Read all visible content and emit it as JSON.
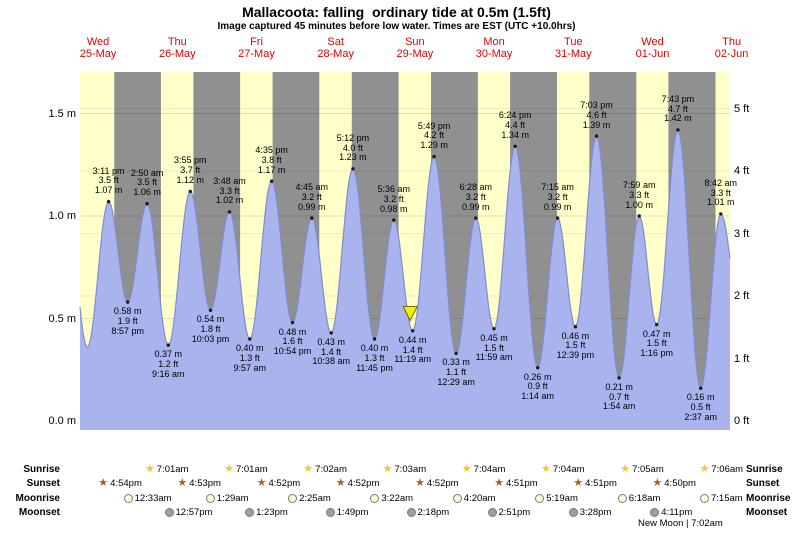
{
  "title": "Mallacoota: falling  ordinary tide at 0.5m (1.5ft)",
  "subtitle": "Image captured 45 minutes before low water. Times are EST (UTC +10.0hrs)",
  "days": [
    {
      "name": "Wed",
      "date": "25-May"
    },
    {
      "name": "Thu",
      "date": "26-May"
    },
    {
      "name": "Fri",
      "date": "27-May"
    },
    {
      "name": "Sat",
      "date": "28-May"
    },
    {
      "name": "Sun",
      "date": "29-May"
    },
    {
      "name": "Mon",
      "date": "30-May"
    },
    {
      "name": "Tue",
      "date": "31-May"
    },
    {
      "name": "Wed",
      "date": "01-Jun"
    },
    {
      "name": "Thu",
      "date": "02-Jun"
    }
  ],
  "y_axis": {
    "left_labels": [
      "1.5 m",
      "1.0 m",
      "0.5 m",
      "0.0 m"
    ],
    "right_labels": [
      "5 ft",
      "4 ft",
      "3 ft",
      "2 ft",
      "1 ft",
      "0 ft"
    ]
  },
  "chart_data": {
    "type": "area",
    "ylabel_left_unit": "m",
    "ylabel_right_unit": "ft",
    "ylim_m": [
      0,
      1.7
    ],
    "x_range_hours": [
      6.5,
      203.5
    ],
    "tide_events": [
      {
        "type": "high",
        "time": "3:11 pm",
        "ft": "3.5 ft",
        "m": "1.07 m",
        "height_m": 1.07,
        "t": 15.18
      },
      {
        "type": "low",
        "time": "8:57 pm",
        "ft": "1.9 ft",
        "m": "0.58 m",
        "height_m": 0.58,
        "t": 20.95
      },
      {
        "type": "high",
        "time": "2:50 am",
        "ft": "3.5 ft",
        "m": "1.06 m",
        "height_m": 1.06,
        "t": 26.83
      },
      {
        "type": "low",
        "time": "9:16 am",
        "ft": "1.2 ft",
        "m": "0.37 m",
        "height_m": 0.37,
        "t": 33.27
      },
      {
        "type": "high",
        "time": "3:55 pm",
        "ft": "3.7 ft",
        "m": "1.12 m",
        "height_m": 1.12,
        "t": 39.92
      },
      {
        "type": "low",
        "time": "10:03 pm",
        "ft": "1.8 ft",
        "m": "0.54 m",
        "height_m": 0.54,
        "t": 46.05
      },
      {
        "type": "high",
        "time": "3:48 am",
        "ft": "3.3 ft",
        "m": "1.02 m",
        "height_m": 1.02,
        "t": 51.8
      },
      {
        "type": "low",
        "time": "9:57 am",
        "ft": "1.3 ft",
        "m": "0.40 m",
        "height_m": 0.4,
        "t": 57.95
      },
      {
        "type": "high",
        "time": "4:35 pm",
        "ft": "3.8 ft",
        "m": "1.17 m",
        "height_m": 1.17,
        "t": 64.58
      },
      {
        "type": "low",
        "time": "10:54 pm",
        "ft": "1.6 ft",
        "m": "0.48 m",
        "height_m": 0.48,
        "t": 70.9
      },
      {
        "type": "high",
        "time": "4:45 am",
        "ft": "3.2 ft",
        "m": "0.99 m",
        "height_m": 0.99,
        "t": 76.75
      },
      {
        "type": "low",
        "time": "10:38 am",
        "ft": "1.4 ft",
        "m": "0.43 m",
        "height_m": 0.43,
        "t": 82.63
      },
      {
        "type": "high",
        "time": "5:12 pm",
        "ft": "4.0 ft",
        "m": "1.23 m",
        "height_m": 1.23,
        "t": 89.2
      },
      {
        "type": "low",
        "time": "11:45 pm",
        "ft": "1.3 ft",
        "m": "0.40 m",
        "height_m": 0.4,
        "t": 95.75
      },
      {
        "type": "high",
        "time": "5:36 am",
        "ft": "3.2 ft",
        "m": "0.98 m",
        "height_m": 0.98,
        "t": 101.6
      },
      {
        "type": "low",
        "time": "11:19 am",
        "ft": "1.4 ft",
        "m": "0.44 m",
        "height_m": 0.44,
        "t": 107.32
      },
      {
        "type": "high",
        "time": "5:49 pm",
        "ft": "4.2 ft",
        "m": "1.29 m",
        "height_m": 1.29,
        "t": 113.82
      },
      {
        "type": "low",
        "time": "12:29 am",
        "ft": "1.1 ft",
        "m": "0.33 m",
        "height_m": 0.33,
        "t": 120.48
      },
      {
        "type": "high",
        "time": "6:28 am",
        "ft": "3.2 ft",
        "m": "0.99 m",
        "height_m": 0.99,
        "t": 126.47
      },
      {
        "type": "low",
        "time": "11:59 am",
        "ft": "1.5 ft",
        "m": "0.45 m",
        "height_m": 0.45,
        "t": 131.98
      },
      {
        "type": "high",
        "time": "6:24 pm",
        "ft": "4.4 ft",
        "m": "1.34 m",
        "height_m": 1.34,
        "t": 138.4
      },
      {
        "type": "low",
        "time": "1:14 am",
        "ft": "0.9 ft",
        "m": "0.26 m",
        "height_m": 0.26,
        "t": 145.23
      },
      {
        "type": "high",
        "time": "7:15 am",
        "ft": "3.2 ft",
        "m": "0.99 m",
        "height_m": 0.99,
        "t": 151.25
      },
      {
        "type": "low",
        "time": "12:39 pm",
        "ft": "1.5 ft",
        "m": "0.46 m",
        "height_m": 0.46,
        "t": 156.65
      },
      {
        "type": "high",
        "time": "7:03 pm",
        "ft": "4.6 ft",
        "m": "1.39 m",
        "height_m": 1.39,
        "t": 163.05
      },
      {
        "type": "low",
        "time": "1:54 am",
        "ft": "0.7 ft",
        "m": "0.21 m",
        "height_m": 0.21,
        "t": 169.9
      },
      {
        "type": "high",
        "time": "7:59 am",
        "ft": "3.3 ft",
        "m": "1.00 m",
        "height_m": 1.0,
        "t": 175.98
      },
      {
        "type": "low",
        "time": "1:16 pm",
        "ft": "1.5 ft",
        "m": "0.47 m",
        "height_m": 0.47,
        "t": 181.27
      },
      {
        "type": "high",
        "time": "7:43 pm",
        "ft": "4.7 ft",
        "m": "1.42 m",
        "height_m": 1.42,
        "t": 187.72
      },
      {
        "type": "low",
        "time": "2:37 am",
        "ft": "0.5 ft",
        "m": "0.16 m",
        "height_m": 0.16,
        "t": 194.62
      },
      {
        "type": "high",
        "time": "8:42 am",
        "ft": "3.3 ft",
        "m": "1.01 m",
        "height_m": 1.01,
        "t": 200.7
      }
    ],
    "edge_points": [
      {
        "t": 2.7,
        "height_m": 1.02
      },
      {
        "t": 8.7,
        "height_m": 0.36
      },
      {
        "t": 207.0,
        "height_m": 0.48
      }
    ],
    "marker": {
      "t": 106.57,
      "height_m": 0.5
    }
  },
  "sun_moon": {
    "rows": [
      {
        "label": "Sunrise",
        "icon": "sunrise-star",
        "entries": [
          {
            "time": "7:01am",
            "t": 31.02
          },
          {
            "time": "7:01am",
            "t": 55.02
          },
          {
            "time": "7:02am",
            "t": 79.03
          },
          {
            "time": "7:03am",
            "t": 103.05
          },
          {
            "time": "7:04am",
            "t": 127.07
          },
          {
            "time": "7:04am",
            "t": 151.07
          },
          {
            "time": "7:05am",
            "t": 175.08
          },
          {
            "time": "7:06am",
            "t": 199.1
          }
        ]
      },
      {
        "label": "Sunset",
        "icon": "sunset-star",
        "entries": [
          {
            "time": "4:54pm",
            "t": 16.9
          },
          {
            "time": "4:53pm",
            "t": 40.88
          },
          {
            "time": "4:52pm",
            "t": 64.87
          },
          {
            "time": "4:52pm",
            "t": 88.87
          },
          {
            "time": "4:52pm",
            "t": 112.87
          },
          {
            "time": "4:51pm",
            "t": 136.85
          },
          {
            "time": "4:51pm",
            "t": 160.85
          },
          {
            "time": "4:50pm",
            "t": 184.83
          }
        ]
      },
      {
        "label": "Moonrise",
        "icon": "moonrise-circle",
        "entries": [
          {
            "time": "12:33am",
            "t": 24.55
          },
          {
            "time": "1:29am",
            "t": 49.48
          },
          {
            "time": "2:25am",
            "t": 74.42
          },
          {
            "time": "3:22am",
            "t": 99.37
          },
          {
            "time": "4:20am",
            "t": 124.33
          },
          {
            "time": "5:19am",
            "t": 149.32
          },
          {
            "time": "6:18am",
            "t": 174.3
          },
          {
            "time": "7:15am",
            "t": 199.25
          }
        ]
      },
      {
        "label": "Moonset",
        "icon": "moonset-circle",
        "entries": [
          {
            "time": "12:57pm",
            "t": 36.95
          },
          {
            "time": "1:23pm",
            "t": 61.38
          },
          {
            "time": "1:49pm",
            "t": 85.82
          },
          {
            "time": "2:18pm",
            "t": 110.3
          },
          {
            "time": "2:51pm",
            "t": 134.85
          },
          {
            "time": "3:28pm",
            "t": 159.47
          },
          {
            "time": "4:11pm",
            "t": 184.18
          }
        ]
      }
    ],
    "note": "New Moon | 7:02am"
  },
  "colors": {
    "day_bg": "#ffffc9",
    "night_bg": "#909090",
    "tide_fill": "#a9b4ee",
    "tide_stroke": "#7f8cd0",
    "day_label": "#e60000",
    "sunrise_star": "#f4c430",
    "sunset_star": "#a2651f",
    "moonrise_fill": "#fffbdc",
    "moonset_fill": "#9f9f9f",
    "marker_fill": "#f6ef00"
  }
}
